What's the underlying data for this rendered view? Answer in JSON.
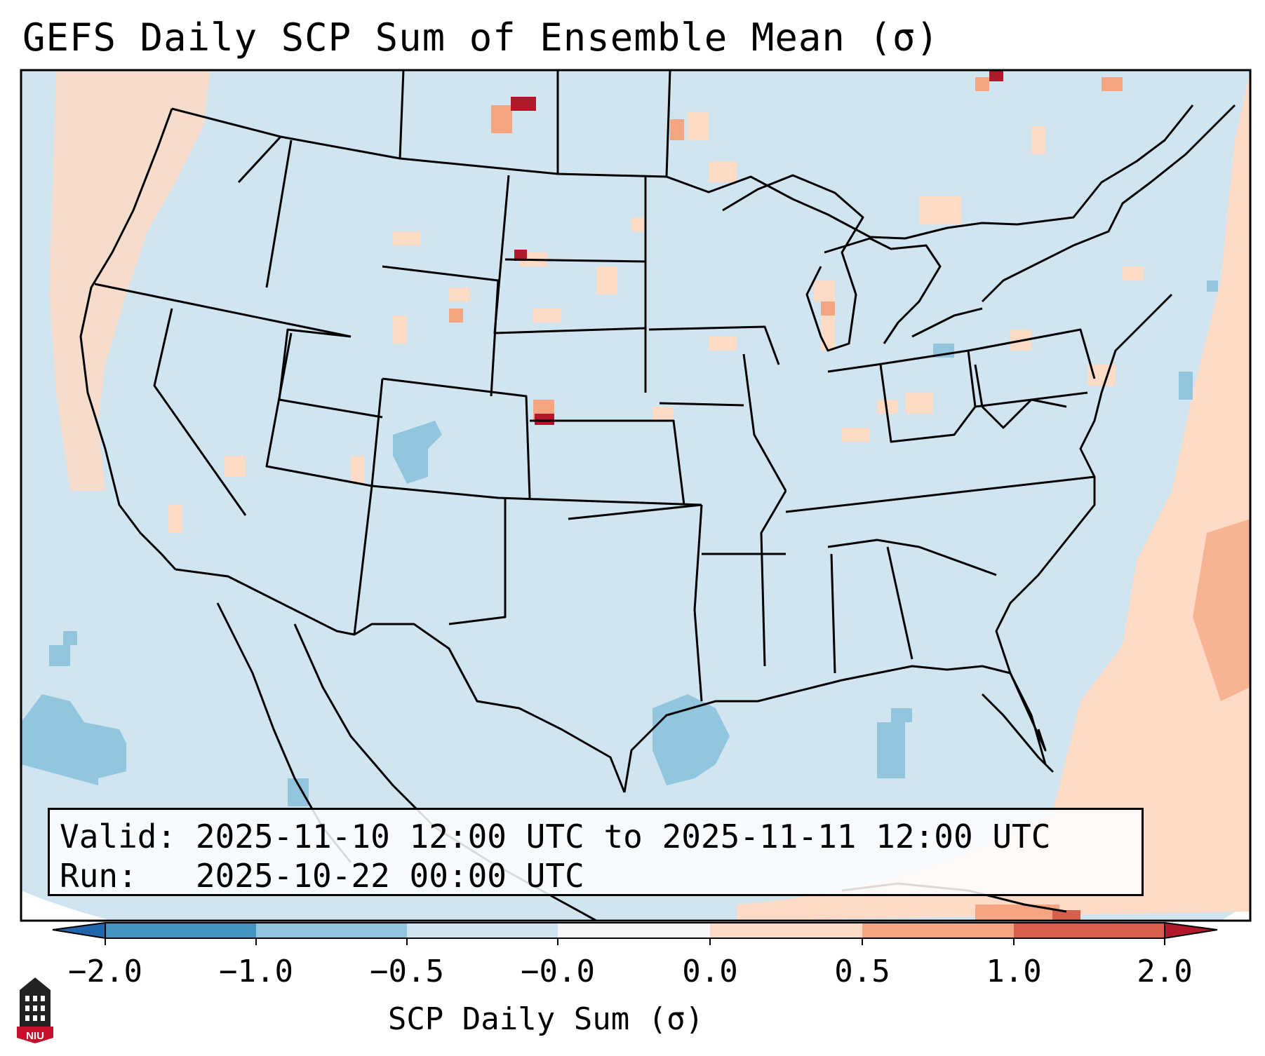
{
  "title": "GEFS Daily SCP Sum of Ensemble Mean (σ)",
  "info": {
    "valid_label": "Valid:",
    "valid_value": "2025-11-10 12:00 UTC to 2025-11-11 12:00 UTC",
    "run_label": "Run:",
    "run_value": "2025-10-22 00:00 UTC"
  },
  "colorbar": {
    "label": "SCP Daily Sum (σ)",
    "ticks": [
      "−2.0",
      "−1.0",
      "−0.5",
      "−0.0",
      "0.0",
      "0.5",
      "1.0",
      "2.0"
    ],
    "colors": {
      "extend_low": "#2166ac",
      "bin_neg2_neg1": "#4393c3",
      "bin_neg1_neg05": "#92c5de",
      "bin_neg05_0": "#d1e5f0",
      "bin_0_0": "#f7f7f7",
      "bin_0_05": "#fddbc7",
      "bin_05_1": "#f4a582",
      "bin_1_2": "#d6604d",
      "extend_high": "#b2182b"
    }
  },
  "logo": {
    "text": "NIU",
    "icon": "niu-tower-logo-icon"
  }
}
